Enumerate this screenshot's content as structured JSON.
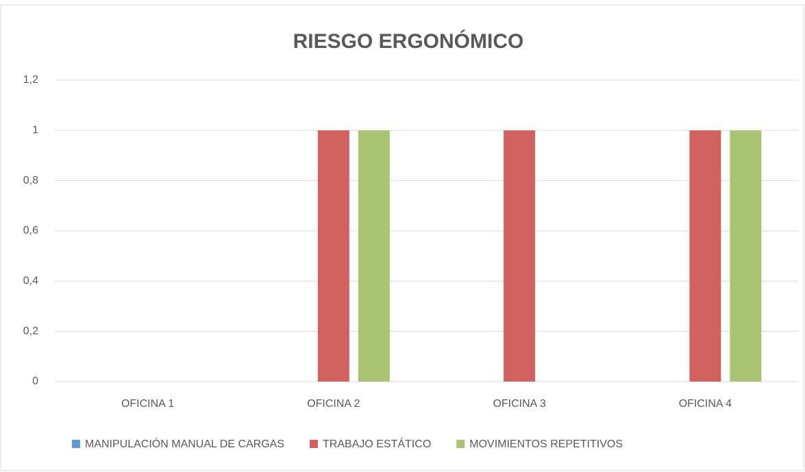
{
  "chart_data": {
    "type": "bar",
    "title": "RIESGO ERGONÓMICO",
    "categories": [
      "OFICINA 1",
      "OFICINA 2",
      "OFICINA 3",
      "OFICINA 4"
    ],
    "series": [
      {
        "name": "MANIPULACIÓN MANUAL DE CARGAS",
        "color": "#5b9bd5",
        "values": [
          0,
          0,
          0,
          0
        ]
      },
      {
        "name": "TRABAJO ESTÁTICO",
        "color": "#d2625f",
        "values": [
          0,
          1,
          1,
          1
        ]
      },
      {
        "name": "MOVIMIENTOS REPETITIVOS",
        "color": "#a9c574",
        "values": [
          0,
          1,
          0,
          1
        ]
      }
    ],
    "ylim": [
      0,
      1.2
    ],
    "yticks": [
      0,
      {
        "value": 0.2,
        "label": "0,2"
      },
      {
        "value": 0.4,
        "label": "0,4"
      },
      {
        "value": 0.6,
        "label": "0,6"
      },
      {
        "value": 0.8,
        "label": "0,8"
      },
      1,
      {
        "value": 1.2,
        "label": "1,2"
      }
    ],
    "grid": true,
    "legend": "bottom"
  }
}
